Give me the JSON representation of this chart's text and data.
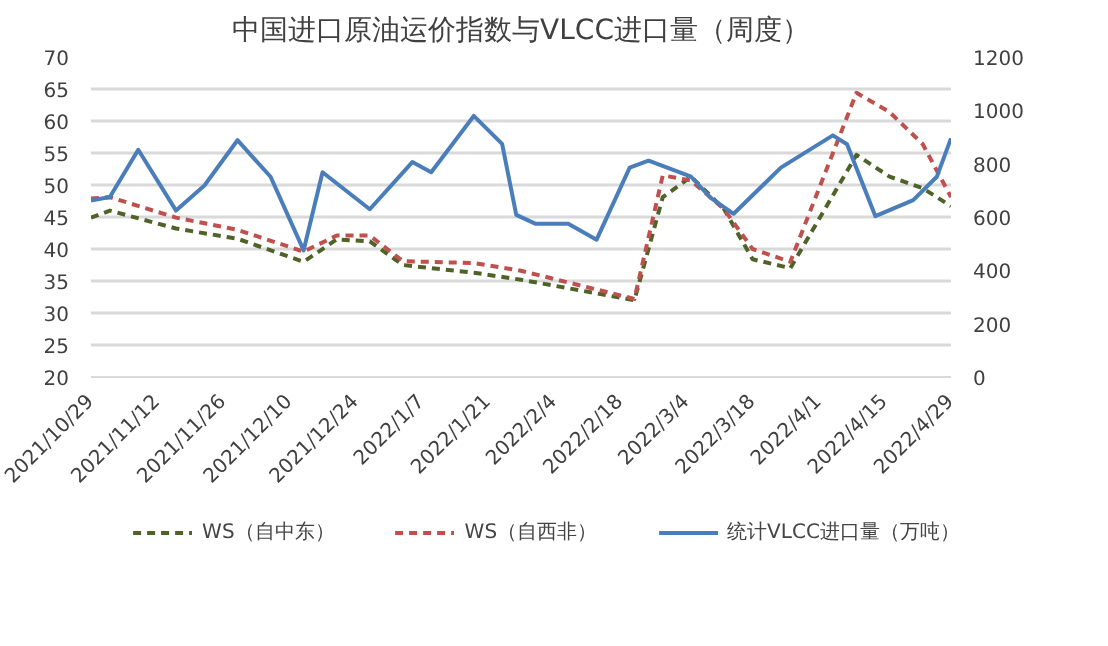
{
  "chart_data": {
    "type": "line",
    "title": "中国进口原油运价指数与VLCC进口量（周度）",
    "xlim": [
      "2021-10-29",
      "2022-04-29"
    ],
    "xticks": [
      {
        "value": "2021-10-29",
        "label": "2021/10/29"
      },
      {
        "value": "2021-11-12",
        "label": "2021/11/12"
      },
      {
        "value": "2021-11-26",
        "label": "2021/11/26"
      },
      {
        "value": "2021-12-10",
        "label": "2021/12/10"
      },
      {
        "value": "2021-12-24",
        "label": "2021/12/24"
      },
      {
        "value": "2022-01-07",
        "label": "2022/1/7"
      },
      {
        "value": "2022-01-21",
        "label": "2022/1/21"
      },
      {
        "value": "2022-02-04",
        "label": "2022/2/4"
      },
      {
        "value": "2022-02-18",
        "label": "2022/2/18"
      },
      {
        "value": "2022-03-04",
        "label": "2022/3/4"
      },
      {
        "value": "2022-03-18",
        "label": "2022/3/18"
      },
      {
        "value": "2022-04-01",
        "label": "2022/4/1"
      },
      {
        "value": "2022-04-15",
        "label": "2022/4/15"
      },
      {
        "value": "2022-04-29",
        "label": "2022/4/29"
      }
    ],
    "ylim": [
      20,
      70
    ],
    "yticks": [
      20,
      25,
      30,
      35,
      40,
      45,
      50,
      55,
      60,
      65,
      70
    ],
    "y2lim": [
      0,
      1200
    ],
    "y2ticks": [
      0,
      200,
      400,
      600,
      800,
      1000,
      1200
    ],
    "grid": "y",
    "legend": "bottom",
    "series": [
      {
        "name": "WS（自中东）",
        "color": "#4f6228",
        "line_style": "dashed",
        "x": [
          "2021-10-29",
          "2021-11-02",
          "2021-11-16",
          "2021-11-29",
          "2021-12-13",
          "2021-12-20",
          "2021-12-27",
          "2022-01-03",
          "2022-01-18",
          "2022-01-28",
          "2022-02-21",
          "2022-02-27",
          "2022-03-05",
          "2022-03-12",
          "2022-03-18",
          "2022-03-26",
          "2022-04-09",
          "2022-04-16",
          "2022-04-23",
          "2022-04-29"
        ],
        "values": [
          44.9,
          46.0,
          43.2,
          41.6,
          38.0,
          41.5,
          41.2,
          37.5,
          36.3,
          35.2,
          32.0,
          48.1,
          51.3,
          46.2,
          38.4,
          37.0,
          54.7,
          51.3,
          49.5,
          46.7
        ]
      },
      {
        "name": "WS（自西非）",
        "color": "#c0504d",
        "line_style": "dashed",
        "x": [
          "2021-10-29",
          "2021-11-02",
          "2021-11-16",
          "2021-11-29",
          "2021-12-13",
          "2021-12-20",
          "2021-12-27",
          "2022-01-03",
          "2022-01-18",
          "2022-01-28",
          "2022-02-21",
          "2022-02-27",
          "2022-03-05",
          "2022-03-12",
          "2022-03-18",
          "2022-03-26",
          "2022-04-09",
          "2022-04-16",
          "2022-04-23",
          "2022-04-29"
        ],
        "values": [
          47.9,
          48.1,
          44.9,
          43.0,
          39.6,
          42.1,
          42.1,
          38.1,
          37.8,
          36.6,
          32.2,
          51.5,
          50.7,
          46.2,
          40.0,
          38.0,
          64.4,
          61.4,
          56.4,
          48.1
        ]
      },
      {
        "name": "统计VLCC进口量（万吨）",
        "color": "#4a7ebb",
        "line_style": "solid",
        "axis": "y2",
        "x": [
          "2021-10-29",
          "2021-11-02",
          "2021-11-08",
          "2021-11-16",
          "2021-11-22",
          "2021-11-29",
          "2021-12-06",
          "2021-12-13",
          "2021-12-17",
          "2021-12-27",
          "2022-01-05",
          "2022-01-09",
          "2022-01-18",
          "2022-01-24",
          "2022-01-27",
          "2022-01-31",
          "2022-02-07",
          "2022-02-13",
          "2022-02-20",
          "2022-02-24",
          "2022-03-05",
          "2022-03-09",
          "2022-03-14",
          "2022-03-24",
          "2022-04-04",
          "2022-04-07",
          "2022-04-13",
          "2022-04-21",
          "2022-04-26",
          "2022-04-29"
        ],
        "values": [
          662,
          675,
          852,
          624,
          718,
          888,
          751,
          475,
          768,
          629,
          806,
          768,
          979,
          874,
          608,
          575,
          575,
          515,
          785,
          811,
          751,
          674,
          612,
          785,
          906,
          873,
          603,
          663,
          751,
          895
        ]
      }
    ]
  }
}
